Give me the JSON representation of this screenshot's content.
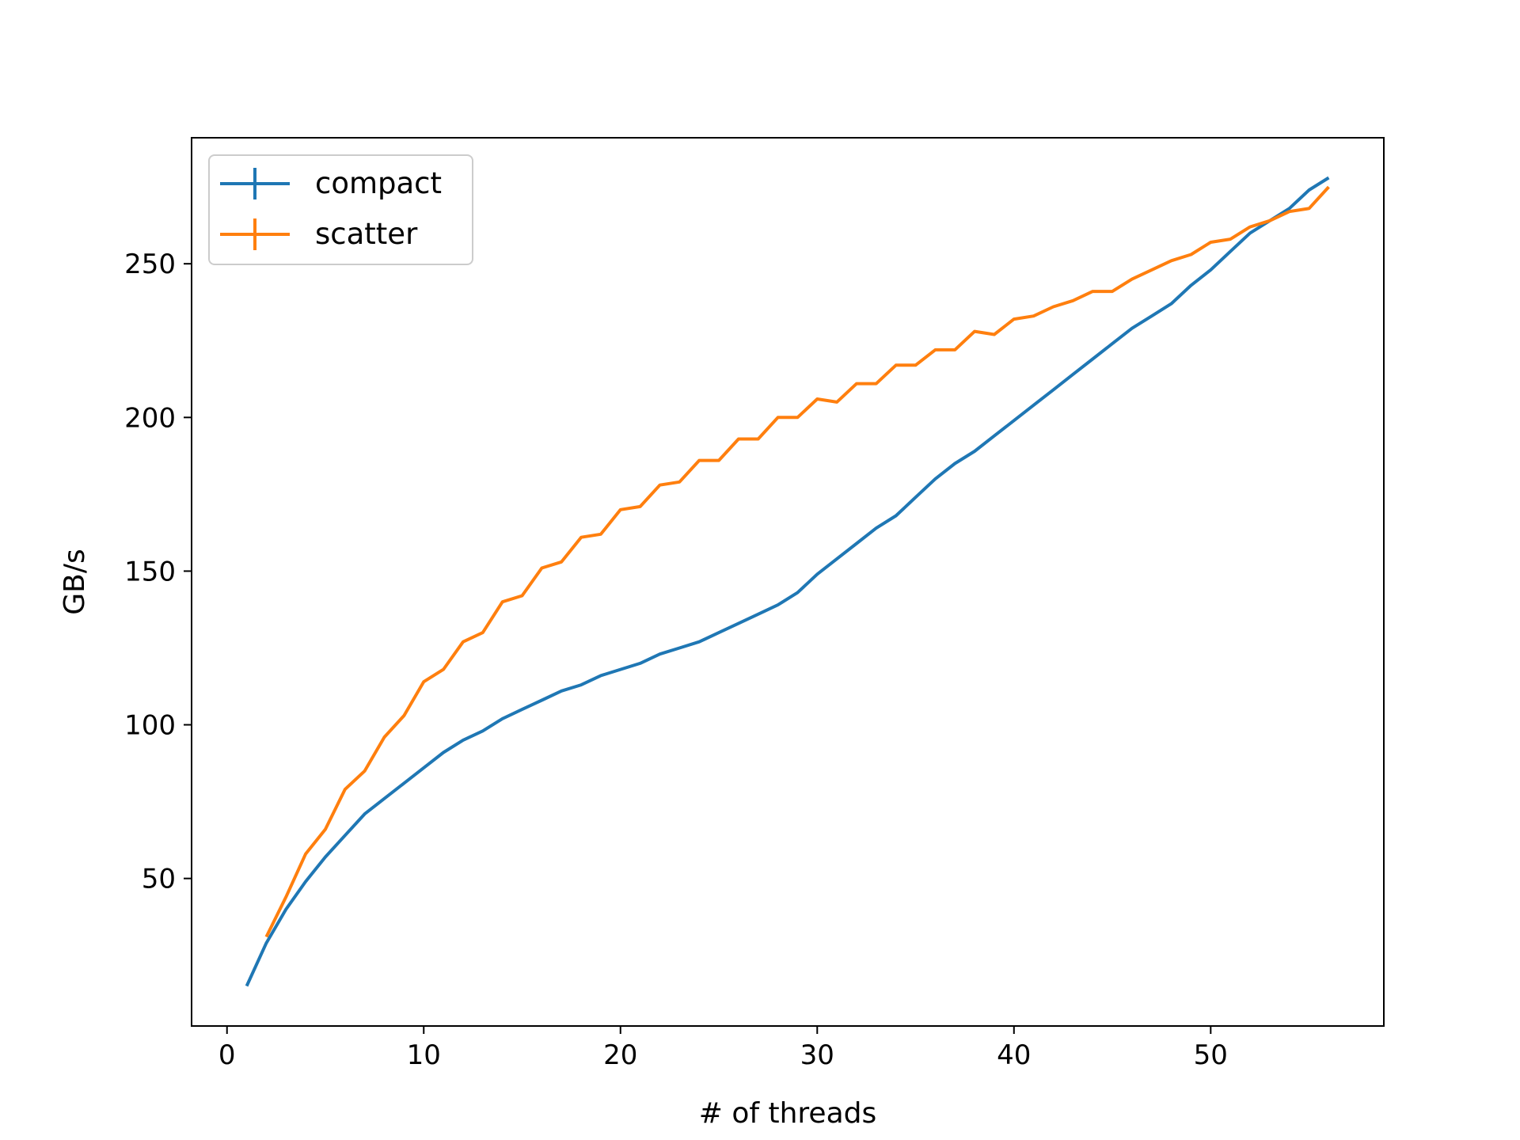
{
  "chart_data": {
    "type": "line",
    "title": "",
    "xlabel": "# of threads",
    "ylabel": "GB/s",
    "xlim": [
      -1.8,
      58.8
    ],
    "ylim": [
      2,
      291
    ],
    "xticks": [
      0,
      10,
      20,
      30,
      40,
      50
    ],
    "yticks": [
      50,
      100,
      150,
      200,
      250
    ],
    "grid": false,
    "legend_position": "top-left",
    "series": [
      {
        "name": "compact",
        "color": "#1f77b4",
        "x": [
          1,
          2,
          3,
          4,
          5,
          6,
          7,
          8,
          9,
          10,
          11,
          12,
          13,
          14,
          15,
          16,
          17,
          18,
          19,
          20,
          21,
          22,
          23,
          24,
          25,
          26,
          27,
          28,
          29,
          30,
          31,
          32,
          33,
          34,
          35,
          36,
          37,
          38,
          39,
          40,
          41,
          42,
          43,
          44,
          45,
          46,
          47,
          48,
          49,
          50,
          51,
          52,
          53,
          54,
          55,
          56
        ],
        "values": [
          15,
          29,
          40,
          49,
          57,
          64,
          71,
          76,
          81,
          86,
          91,
          95,
          98,
          102,
          105,
          108,
          111,
          113,
          116,
          118,
          120,
          123,
          125,
          127,
          130,
          133,
          136,
          139,
          143,
          149,
          154,
          159,
          164,
          168,
          174,
          180,
          185,
          189,
          194,
          199,
          204,
          209,
          214,
          219,
          224,
          229,
          233,
          237,
          243,
          248,
          254,
          260,
          264,
          268,
          274,
          278
        ]
      },
      {
        "name": "scatter",
        "color": "#ff7f0e",
        "x": [
          2,
          3,
          4,
          5,
          6,
          7,
          8,
          9,
          10,
          11,
          12,
          13,
          14,
          15,
          16,
          17,
          18,
          19,
          20,
          21,
          22,
          23,
          24,
          25,
          26,
          27,
          28,
          29,
          30,
          31,
          32,
          33,
          34,
          35,
          36,
          37,
          38,
          39,
          40,
          41,
          42,
          43,
          44,
          45,
          46,
          47,
          48,
          49,
          50,
          51,
          52,
          53,
          54,
          55,
          56
        ],
        "values": [
          31,
          44,
          58,
          66,
          79,
          85,
          96,
          103,
          114,
          118,
          127,
          130,
          140,
          142,
          151,
          153,
          161,
          162,
          170,
          171,
          178,
          179,
          186,
          186,
          193,
          193,
          200,
          200,
          206,
          205,
          211,
          211,
          217,
          217,
          222,
          222,
          228,
          227,
          232,
          233,
          236,
          238,
          241,
          241,
          245,
          248,
          251,
          253,
          257,
          258,
          262,
          264,
          267,
          268,
          275
        ]
      }
    ]
  }
}
